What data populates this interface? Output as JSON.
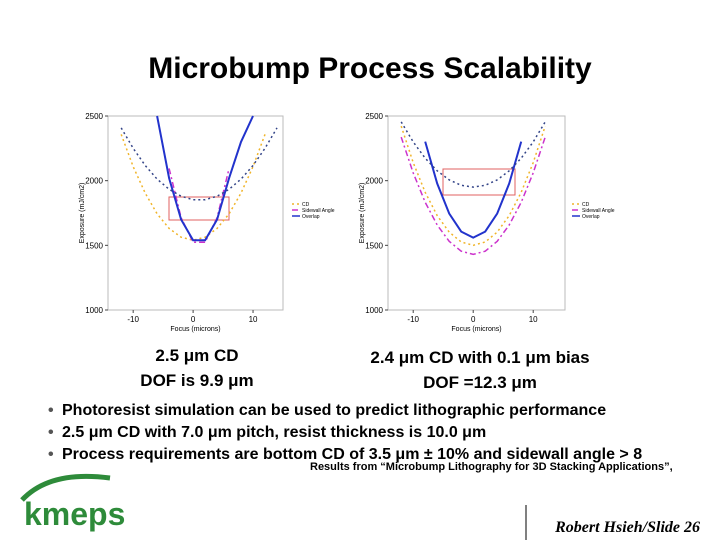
{
  "title": "Microbump Process Scalability",
  "chart_data": [
    {
      "type": "line",
      "x": [
        -14,
        -12,
        -10,
        -8,
        -6,
        -4,
        -2,
        0,
        2,
        4,
        6,
        8,
        10,
        12,
        14
      ],
      "xlim": [
        -14.2,
        15
      ],
      "ylim": [
        1000,
        2500
      ],
      "xticks": [
        -10,
        0,
        10
      ],
      "yticks": [
        1000,
        1500,
        2000,
        2500
      ],
      "x_label": "Focus (microns)",
      "y_label": "Exposure (mJ/cm2)",
      "legend": "right",
      "series": [
        {
          "name": "CD",
          "color": "#f0b429",
          "style": "dotted",
          "values": [
            null,
            2358,
            2108,
            1904,
            1744,
            1631,
            1563,
            1540,
            1563,
            1631,
            1744,
            1904,
            2108,
            2358,
            null
          ]
        },
        {
          "name": "Sidewall Angle",
          "color": "#cc33cc",
          "style": "dashdot",
          "values": [
            null,
            null,
            null,
            null,
            null,
            2095,
            1714,
            1524,
            1524,
            1714,
            2095,
            null,
            null,
            null,
            null
          ]
        },
        {
          "name": "Overlap",
          "color": "#2233cc",
          "style": "solid",
          "values": [
            null,
            null,
            null,
            null,
            2500,
            2020,
            1700,
            1540,
            1540,
            1700,
            2020,
            2300,
            2500,
            null,
            null
          ]
        },
        {
          "color": "#334488",
          "style": "dotted",
          "values": [
            null,
            2408,
            2250,
            2117,
            2012,
            1933,
            1880,
            1853,
            1853,
            1880,
            1933,
            2012,
            2117,
            2250,
            2408
          ]
        }
      ]
    },
    {
      "type": "line",
      "x": [
        -14,
        -12,
        -10,
        -8,
        -6,
        -4,
        -2,
        0,
        2,
        4,
        6,
        8,
        10,
        12,
        14
      ],
      "xlim": [
        -14.2,
        15.3
      ],
      "ylim": [
        1000,
        2500
      ],
      "xticks": [
        -10,
        0,
        10
      ],
      "yticks": [
        1000,
        1500,
        2000,
        2500
      ],
      "x_label": "Focus (microns)",
      "y_label": "Exposure (mJ/cm2)",
      "legend": "right",
      "series": [
        {
          "name": "CD",
          "color": "#f0b429",
          "style": "dotted",
          "values": [
            null,
            2422,
            2140,
            1910,
            1730,
            1602,
            1526,
            1500,
            1526,
            1602,
            1730,
            1910,
            2140,
            2422,
            null
          ]
        },
        {
          "name": "Sidewall Angle",
          "color": "#cc33cc",
          "style": "dashdot",
          "values": [
            null,
            2337,
            2060,
            1833,
            1657,
            1531,
            1455,
            1430,
            1455,
            1531,
            1657,
            1833,
            2060,
            2337,
            null
          ]
        },
        {
          "name": "Overlap",
          "color": "#2233cc",
          "style": "solid",
          "values": [
            null,
            null,
            null,
            2302,
            1978,
            1746,
            1606,
            1560,
            1606,
            1746,
            1978,
            2302,
            null,
            null,
            null
          ]
        },
        {
          "color": "#334488",
          "style": "dotted",
          "values": [
            null,
            2454,
            2300,
            2174,
            2076,
            2006,
            1964,
            1950,
            1964,
            2006,
            2076,
            2174,
            2300,
            2454,
            null
          ]
        }
      ]
    }
  ],
  "captions": [
    [
      "2.5 μm CD",
      "DOF is 9.9 μm"
    ],
    [
      "2.4 μm CD with 0.1 μm bias",
      "DOF =12.3 μm"
    ]
  ],
  "bullets": [
    "Photoresist simulation can be used to predict lithographic performance",
    "2.5 μm CD with 7.0 μm pitch, resist thickness is 10.0 μm",
    "Process requirements  are bottom CD of 3.5 μm ± 10% and sidewall angle > 8"
  ],
  "citation": "Results from “Microbump Lithography for 3D Stacking Applications”,",
  "logo": "kmeps",
  "footer": "Robert Hsieh/Slide 26"
}
